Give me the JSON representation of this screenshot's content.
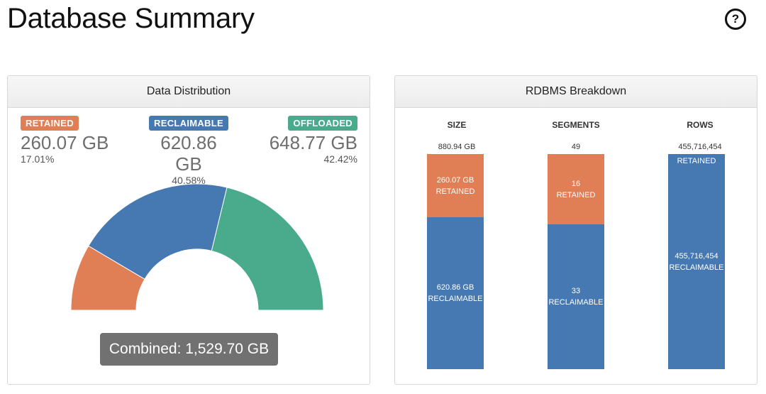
{
  "page": {
    "title": "Database Summary"
  },
  "help": {
    "glyph": "?",
    "icon": "help-icon"
  },
  "colors": {
    "retained": "#e07f55",
    "reclaimable": "#4679b2",
    "offloaded": "#4aab8c",
    "combined": "#717171"
  },
  "data_distribution": {
    "title": "Data Distribution",
    "stats": [
      {
        "key": "retained",
        "label": "RETAINED",
        "value": "260.07 GB",
        "percent": "17.01%"
      },
      {
        "key": "reclaimable",
        "label": "RECLAIMABLE",
        "value": "620.86 GB",
        "percent": "40.58%"
      },
      {
        "key": "offloaded",
        "label": "OFFLOADED",
        "value": "648.77 GB",
        "percent": "42.42%"
      }
    ],
    "combined": "Combined: 1,529.70 GB"
  },
  "chart_data": {
    "type": "pie",
    "categories": [
      "RETAINED",
      "RECLAIMABLE",
      "OFFLOADED"
    ],
    "values": [
      260.07,
      620.86,
      648.77
    ],
    "colors": [
      "#e07f55",
      "#4679b2",
      "#4aab8c"
    ]
  },
  "rdbms_breakdown": {
    "title": "RDBMS Breakdown",
    "columns": [
      {
        "header": "SIZE",
        "total": "880.94 GB",
        "retained": {
          "value": "260.07 GB",
          "label": "RETAINED",
          "fraction": 0.2952
        },
        "reclaimable": {
          "value": "620.86 GB",
          "label": "RECLAIMABLE",
          "fraction": 0.7048
        }
      },
      {
        "header": "SEGMENTS",
        "total": "49",
        "retained": {
          "value": "16",
          "label": "RETAINED",
          "fraction": 0.3265
        },
        "reclaimable": {
          "value": "33",
          "label": "RECLAIMABLE",
          "fraction": 0.6735
        }
      },
      {
        "header": "ROWS",
        "total": "455,716,454",
        "retained": {
          "value": "",
          "label": "RETAINED",
          "fraction": 0
        },
        "reclaimable": {
          "value": "455,716,454",
          "label": "RECLAIMABLE",
          "fraction": 1
        }
      }
    ]
  }
}
